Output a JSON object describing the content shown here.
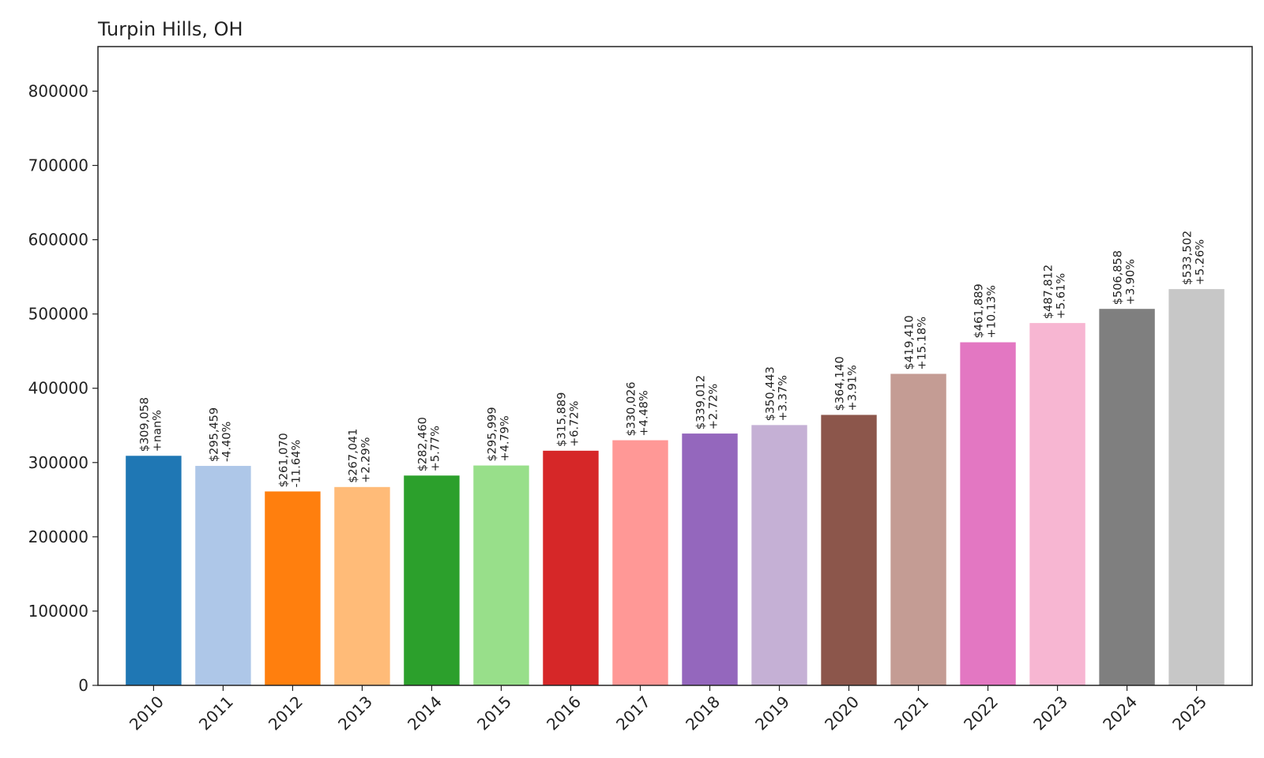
{
  "chart_data": {
    "type": "bar",
    "title": "Turpin Hills, OH",
    "xlabel": "",
    "ylabel": "",
    "ylim": [
      0,
      860000
    ],
    "yticks": [
      0,
      100000,
      200000,
      300000,
      400000,
      500000,
      600000,
      700000,
      800000
    ],
    "ytick_labels": [
      "0",
      "100000",
      "200000",
      "300000",
      "400000",
      "500000",
      "600000",
      "700000",
      "800000"
    ],
    "grid": false,
    "legend": "none",
    "categories": [
      "2010",
      "2011",
      "2012",
      "2013",
      "2014",
      "2015",
      "2016",
      "2017",
      "2018",
      "2019",
      "2020",
      "2021",
      "2022",
      "2023",
      "2024",
      "2025"
    ],
    "values": [
      309058,
      295459,
      261070,
      267041,
      282460,
      295999,
      315889,
      330026,
      339012,
      350443,
      364140,
      419410,
      461889,
      487812,
      506858,
      533502
    ],
    "value_labels": [
      "$309,058",
      "$295,459",
      "$261,070",
      "$267,041",
      "$282,460",
      "$295,999",
      "$315,889",
      "$330,026",
      "$339,012",
      "$350,443",
      "$364,140",
      "$419,410",
      "$461,889",
      "$487,812",
      "$506,858",
      "$533,502"
    ],
    "change_labels": [
      "+nan%",
      "-4.40%",
      "-11.64%",
      "+2.29%",
      "+5.77%",
      "+4.79%",
      "+6.72%",
      "+4.48%",
      "+2.72%",
      "+3.37%",
      "+3.91%",
      "+15.18%",
      "+10.13%",
      "+5.61%",
      "+3.90%",
      "+5.26%"
    ],
    "colors": [
      "#1f77b4",
      "#aec7e8",
      "#ff7f0e",
      "#ffbb78",
      "#2ca02c",
      "#98df8a",
      "#d62728",
      "#ff9896",
      "#9467bd",
      "#c5b0d5",
      "#8c564b",
      "#c49c94",
      "#e377c2",
      "#f7b6d2",
      "#7f7f7f",
      "#c7c7c7"
    ]
  }
}
